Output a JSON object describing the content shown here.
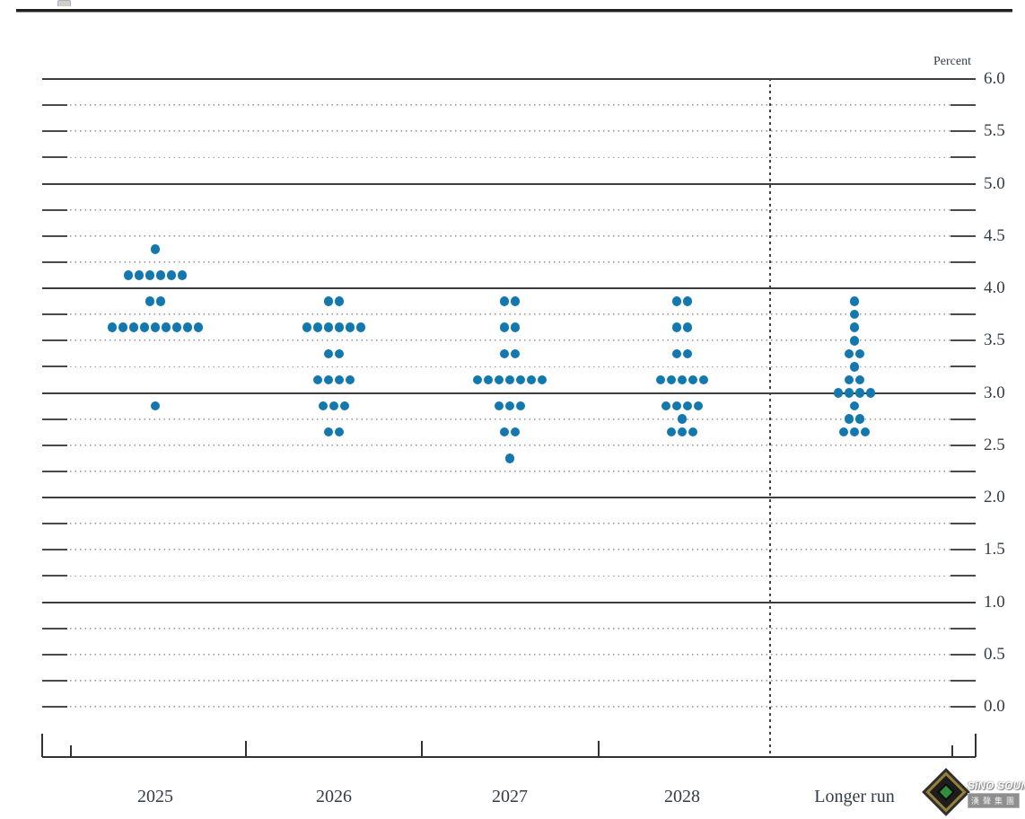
{
  "chart_data": {
    "type": "scatter",
    "subtype": "fomc-dot-plot",
    "title": "",
    "xlabel": "",
    "ylabel": "Percent",
    "categories": [
      "2025",
      "2026",
      "2027",
      "2028",
      "Longer run"
    ],
    "y_tick_labels": [
      "6.0",
      "5.5",
      "5.0",
      "4.5",
      "4.0",
      "3.5",
      "3.0",
      "2.5",
      "2.0",
      "1.5",
      "1.0",
      "0.5",
      "0.0"
    ],
    "ylim": [
      0.0,
      6.0
    ],
    "grid": {
      "solid_lines_at": [
        6.0,
        5.0,
        4.0,
        3.0,
        2.0,
        1.0
      ],
      "dotted_line_step": 0.25,
      "longer_run_divider": "dashed-vertical"
    },
    "legend_position": "none",
    "dot_color": "#1278ae",
    "series": [
      {
        "category": "2025",
        "dots": {
          "4.375": 1,
          "4.125": 6,
          "3.875": 2,
          "3.625": 9,
          "2.875": 1
        }
      },
      {
        "category": "2026",
        "dots": {
          "3.875": 2,
          "3.625": 6,
          "3.375": 2,
          "3.125": 4,
          "2.875": 3,
          "2.625": 2
        }
      },
      {
        "category": "2027",
        "dots": {
          "3.875": 2,
          "3.625": 2,
          "3.375": 2,
          "3.125": 7,
          "2.875": 3,
          "2.625": 2,
          "2.375": 1
        }
      },
      {
        "category": "2028",
        "dots": {
          "3.875": 2,
          "3.625": 2,
          "3.375": 2,
          "3.125": 5,
          "2.875": 4,
          "2.75": 1,
          "2.625": 3
        }
      },
      {
        "category": "Longer run",
        "dots": {
          "3.875": 1,
          "3.75": 1,
          "3.625": 1,
          "3.5": 1,
          "3.375": 2,
          "3.25": 1,
          "3.125": 2,
          "3.0": 4,
          "2.875": 1,
          "2.75": 2,
          "2.625": 3
        }
      }
    ]
  },
  "logo": {
    "name": "SiNO SOUND",
    "chinese": "漢聲集團"
  }
}
